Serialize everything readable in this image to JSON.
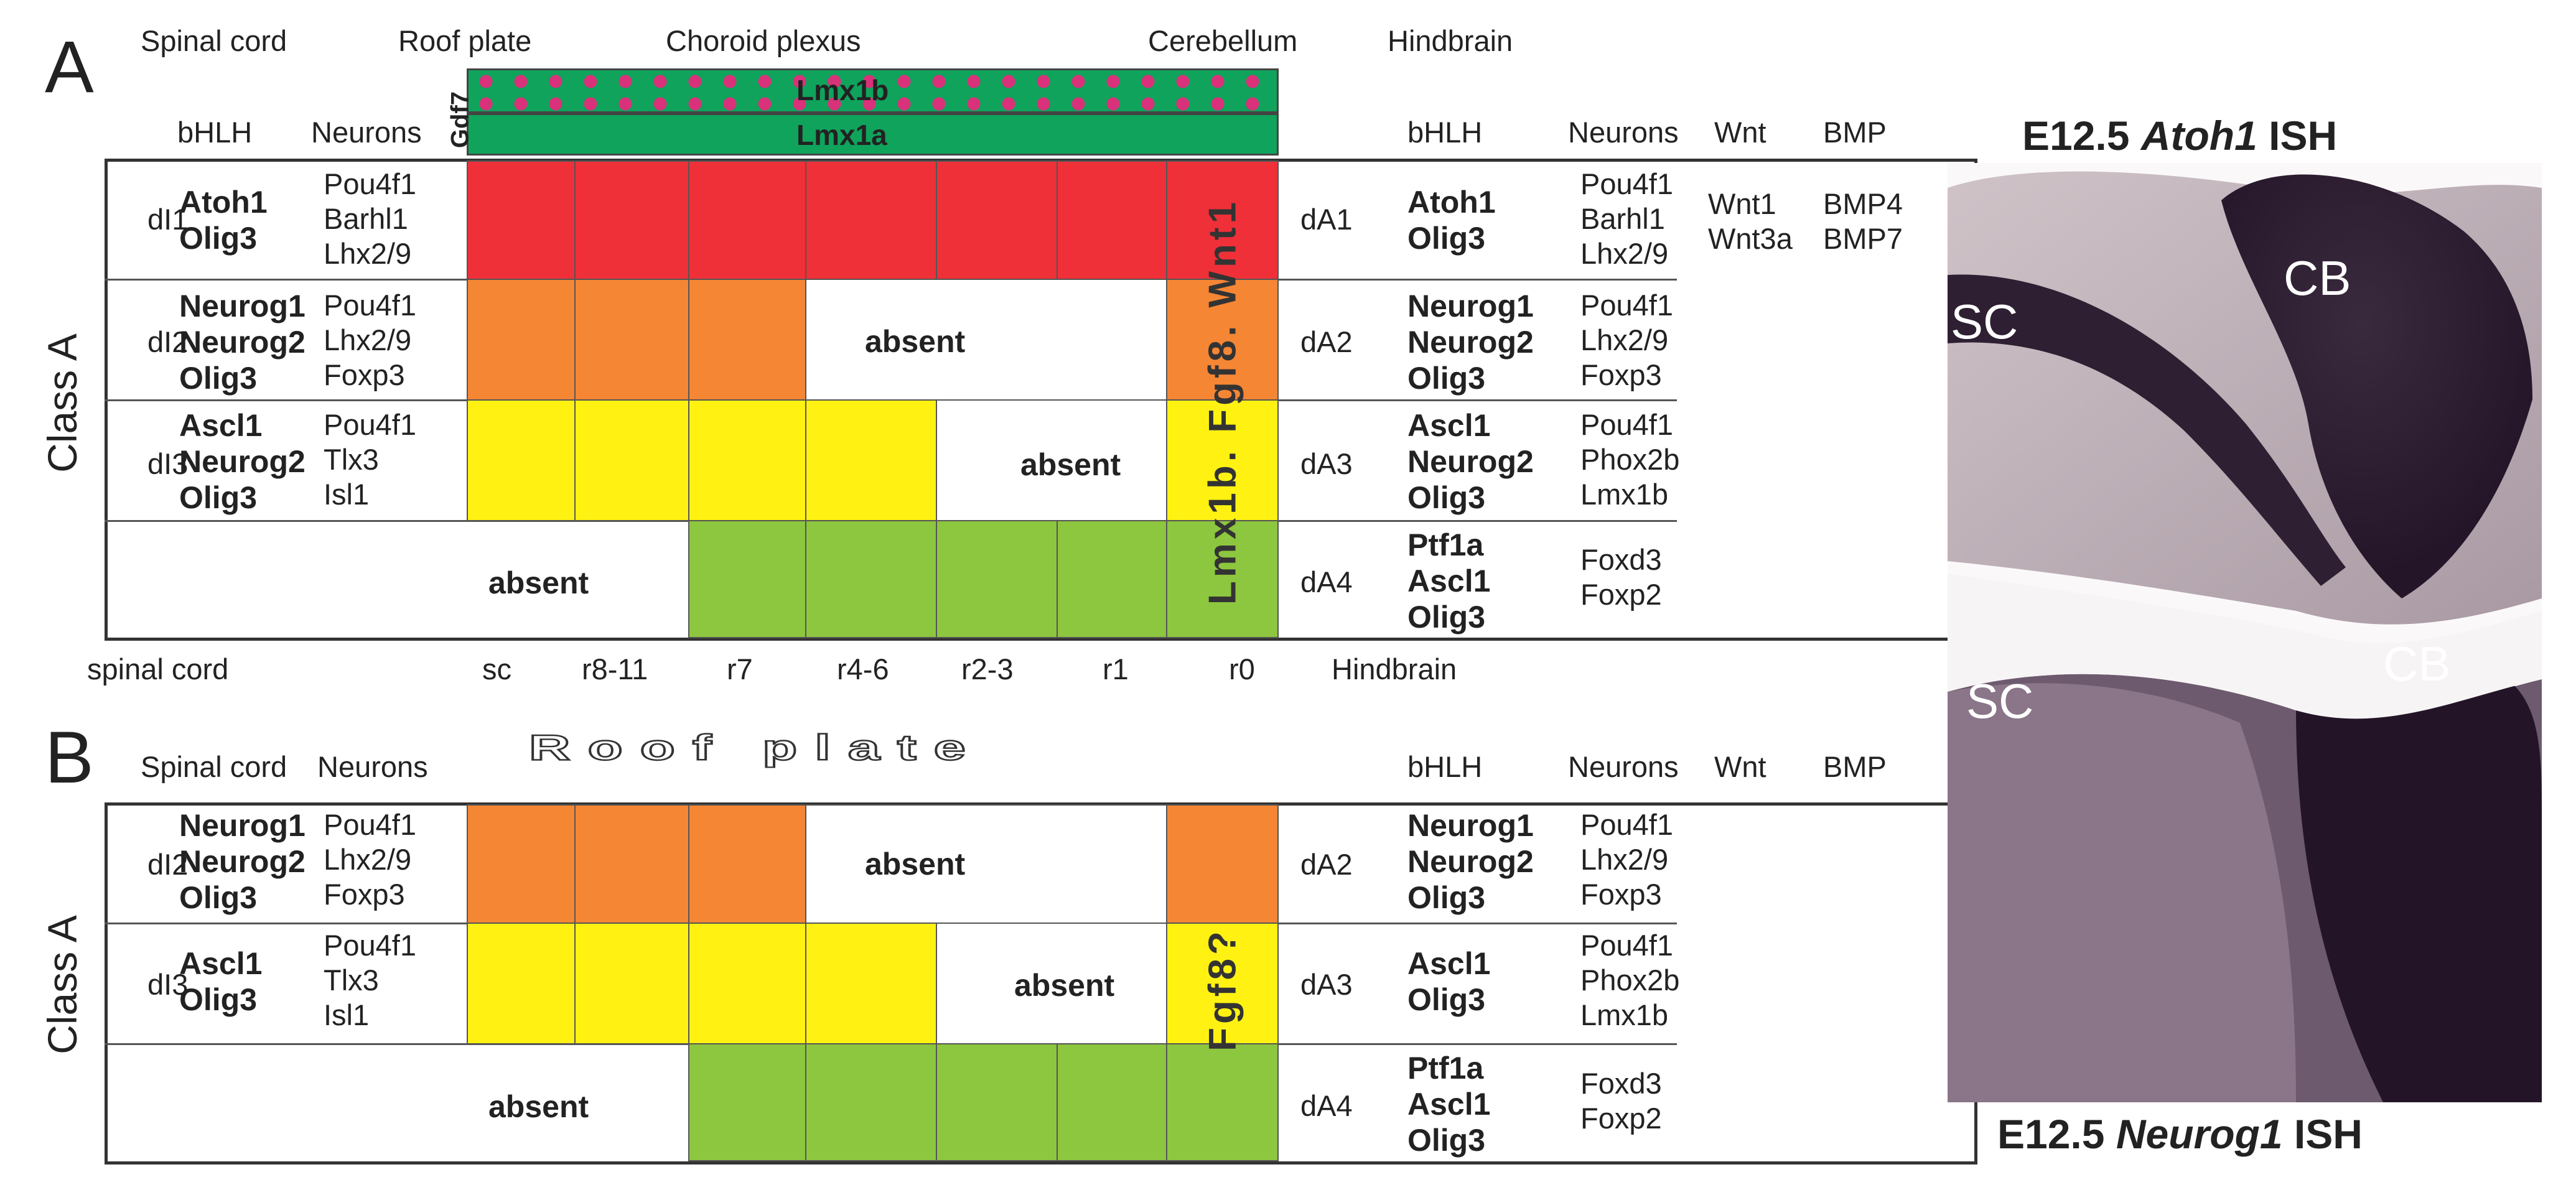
{
  "colors": {
    "dA1": "#ef3038",
    "dA2": "#f58634",
    "dA3": "#fff212",
    "dA4": "#8dc63f",
    "lmx1a": "#0fa35c",
    "lmx1b_dots": "#d9317a"
  },
  "panelA": {
    "letter": "A",
    "top_labels": {
      "spinal_cord": "Spinal cord",
      "roof_plate": "Roof plate",
      "choroid_plexus": "Choroid plexus",
      "cerebellum": "Cerebellum",
      "hindbrain": "Hindbrain"
    },
    "gdf7": "Gdf7",
    "lmx1b": "Lmx1b",
    "lmx1a": "Lmx1a",
    "left_headers": {
      "bhlh": "bHLH",
      "neurons": "Neurons"
    },
    "right_headers": {
      "bhlh": "bHLH",
      "neurons": "Neurons",
      "wnt": "Wnt",
      "bmp": "BMP"
    },
    "class_label": "Class A",
    "vertical_markers": "Lmx1b. Fgf8. Wnt1",
    "rows": [
      {
        "id": "dI1",
        "bhlh": "Atoh1\nOlig3",
        "neurons": "Pou4f1\nBarhl1\nLhx2/9",
        "right_id": "dA1",
        "right_bhlh": "Atoh1\nOlig3",
        "right_neurons": "Pou4f1\nBarhl1\nLhx2/9",
        "wnt": "Wnt1\nWnt3a",
        "bmp": "BMP4\nBMP7"
      },
      {
        "id": "dI2",
        "bhlh": "Neurog1\nNeurog2\nOlig3",
        "neurons": "Pou4f1\nLhx2/9\nFoxp3",
        "right_id": "dA2",
        "right_bhlh": "Neurog1\nNeurog2\nOlig3",
        "right_neurons": "Pou4f1\nLhx2/9\nFoxp3",
        "absent": "absent"
      },
      {
        "id": "dI3",
        "bhlh": "Ascl1\nNeurog2\nOlig3",
        "neurons": "Pou4f1\nTlx3\nIsl1",
        "right_id": "dA3",
        "right_bhlh": "Ascl1\nNeurog2\nOlig3",
        "right_neurons": "Pou4f1\nPhox2b\nLmx1b",
        "absent": "absent"
      },
      {
        "right_id": "dA4",
        "right_bhlh": "Ptf1a\nAscl1\nOlig3",
        "right_neurons": "Foxd3\nFoxp2",
        "absent": "absent"
      }
    ],
    "axis": {
      "left": "spinal cord",
      "ticks": [
        "sc",
        "r8-11",
        "r7",
        "r4-6",
        "r2-3",
        "r1",
        "r0"
      ],
      "right": "Hindbrain"
    }
  },
  "panelB": {
    "letter": "B",
    "headers": {
      "spinal_cord": "Spinal cord",
      "neurons": "Neurons",
      "roof_plate": "Roof plate",
      "bhlh": "bHLH",
      "neurons_r": "Neurons",
      "wnt": "Wnt",
      "bmp": "BMP"
    },
    "class_label": "Class A",
    "vertical_marker": "Fgf8?",
    "rows": [
      {
        "id": "dI2",
        "bhlh": "Neurog1\nNeurog2\nOlig3",
        "neurons": "Pou4f1\nLhx2/9\nFoxp3",
        "right_id": "dA2",
        "right_bhlh": "Neurog1\nNeurog2\nOlig3",
        "right_neurons": "Pou4f1\nLhx2/9\nFoxp3",
        "absent": "absent"
      },
      {
        "id": "dI3",
        "bhlh": "Ascl1\nOlig3",
        "neurons": "Pou4f1\nTlx3\nIsl1",
        "right_id": "dA3",
        "right_bhlh": "Ascl1\nOlig3",
        "right_neurons": "Pou4f1\nPhox2b\nLmx1b",
        "absent": "absent"
      },
      {
        "right_id": "dA4",
        "right_bhlh": "Ptf1a\nAscl1\nOlig3",
        "right_neurons": "Foxd3\nFoxp2",
        "absent": "absent"
      }
    ]
  },
  "photo": {
    "top_caption_pre": "E12.5 ",
    "top_caption_gene": "Atoh1",
    "top_caption_post": " ISH",
    "bottom_caption_pre": "E12.5 ",
    "bottom_caption_gene": "Neurog1",
    "bottom_caption_post": " ISH",
    "label_sc": "SC",
    "label_cb": "CB"
  }
}
